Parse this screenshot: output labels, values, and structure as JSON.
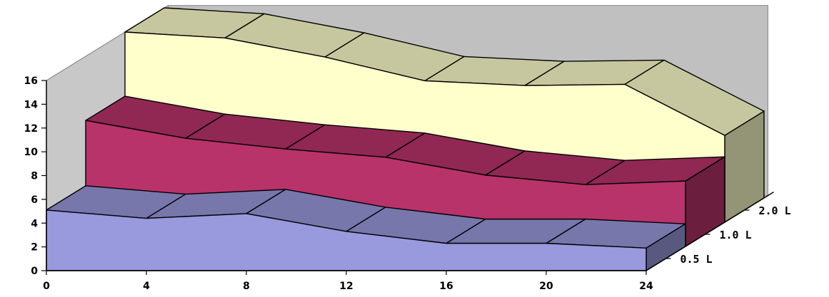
{
  "chart_data": {
    "type": "area",
    "x": [
      0,
      4,
      8,
      12,
      16,
      20,
      24
    ],
    "x_ticks": [
      "0",
      "4",
      "8",
      "12",
      "16",
      "20",
      "24"
    ],
    "y_ticks": [
      "0",
      "2",
      "4",
      "6",
      "8",
      "10",
      "12",
      "14",
      "16"
    ],
    "ylim": [
      0,
      16
    ],
    "series": [
      {
        "name": "0.5 L",
        "values": [
          5.1,
          4.4,
          4.8,
          3.3,
          2.3,
          2.3,
          1.9
        ],
        "color": "#9999dd"
      },
      {
        "name": "1.0 L",
        "values": [
          10.6,
          9.1,
          8.2,
          7.5,
          6.0,
          5.2,
          5.5
        ],
        "color": "#b8336a"
      },
      {
        "name": "2.0 L",
        "values": [
          16.0,
          15.5,
          13.9,
          11.9,
          11.5,
          11.6,
          7.3
        ],
        "color": "#ffffcc"
      }
    ],
    "grid": false,
    "view": "3d-ribbons"
  }
}
